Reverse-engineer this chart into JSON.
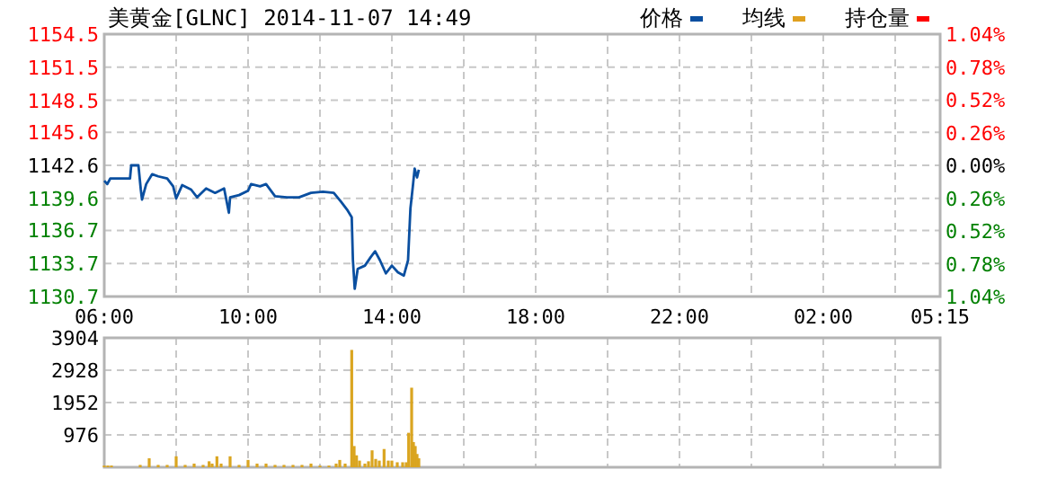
{
  "chart_data": [
    {
      "type": "line",
      "title": "美黄金[GLNC] 2014-11-07 14:49",
      "legend": "top right",
      "grid": true,
      "xlim": [
        "2014-11-07T06:00",
        "2014-11-08T05:15"
      ],
      "xticks": [
        {
          "value": "2014-11-07T06:00",
          "label": "06:00"
        },
        {
          "value": "2014-11-07T08:00",
          "label": null
        },
        {
          "value": "2014-11-07T10:00",
          "label": "10:00"
        },
        {
          "value": "2014-11-07T12:00",
          "label": null
        },
        {
          "value": "2014-11-07T14:00",
          "label": "14:00"
        },
        {
          "value": "2014-11-07T16:00",
          "label": null
        },
        {
          "value": "2014-11-07T18:00",
          "label": "18:00"
        },
        {
          "value": "2014-11-07T20:00",
          "label": null
        },
        {
          "value": "2014-11-07T22:00",
          "label": "22:00"
        },
        {
          "value": "2014-11-08T00:00",
          "label": null
        },
        {
          "value": "2014-11-08T02:00",
          "label": "02:00"
        },
        {
          "value": "2014-11-08T04:00",
          "label": null
        },
        {
          "value": "2014-11-08T05:15",
          "label": "05:15"
        }
      ],
      "ylim": [
        1130.7,
        1154.5
      ],
      "yticks": [
        1130.7,
        1133.7,
        1136.7,
        1139.6,
        1142.6,
        1145.6,
        1148.5,
        1151.5,
        1154.5
      ],
      "y2lim": [
        -1.04,
        1.04
      ],
      "y2ticks": [
        {
          "value": -1.04,
          "label": "1.04%"
        },
        {
          "value": -0.78,
          "label": "0.78%"
        },
        {
          "value": -0.52,
          "label": "0.52%"
        },
        {
          "value": -0.26,
          "label": "0.26%"
        },
        {
          "value": 0,
          "label": "0.00%"
        },
        {
          "value": 0.26,
          "label": "0.26%"
        },
        {
          "value": 0.52,
          "label": "0.52%"
        },
        {
          "value": 0.78,
          "label": "0.78%"
        },
        {
          "value": 1.04,
          "label": "1.04%"
        }
      ],
      "series": [
        {
          "name": "价格",
          "color": "#0a4fa0",
          "x": [
            "2014-11-07T06:00",
            "2014-11-07T06:05",
            "2014-11-07T06:10",
            "2014-11-07T06:43",
            "2014-11-07T06:45",
            "2014-11-07T06:57",
            "2014-11-07T07:01",
            "2014-11-07T07:03",
            "2014-11-07T07:10",
            "2014-11-07T07:20",
            "2014-11-07T07:30",
            "2014-11-07T07:45",
            "2014-11-07T07:55",
            "2014-11-07T08:00",
            "2014-11-07T08:10",
            "2014-11-07T08:25",
            "2014-11-07T08:35",
            "2014-11-07T08:50",
            "2014-11-07T09:05",
            "2014-11-07T09:20",
            "2014-11-07T09:28",
            "2014-11-07T09:30",
            "2014-11-07T09:45",
            "2014-11-07T10:00",
            "2014-11-07T10:05",
            "2014-11-07T10:20",
            "2014-11-07T10:30",
            "2014-11-07T10:45",
            "2014-11-07T11:05",
            "2014-11-07T11:25",
            "2014-11-07T11:45",
            "2014-11-07T12:05",
            "2014-11-07T12:23",
            "2014-11-07T12:35",
            "2014-11-07T12:45",
            "2014-11-07T12:53",
            "2014-11-07T12:55",
            "2014-11-07T12:58",
            "2014-11-07T13:03",
            "2014-11-07T13:15",
            "2014-11-07T13:25",
            "2014-11-07T13:32",
            "2014-11-07T13:40",
            "2014-11-07T13:50",
            "2014-11-07T14:00",
            "2014-11-07T14:10",
            "2014-11-07T14:20",
            "2014-11-07T14:27",
            "2014-11-07T14:31",
            "2014-11-07T14:35",
            "2014-11-07T14:38",
            "2014-11-07T14:42",
            "2014-11-07T14:45"
          ],
          "values": [
            1141.2,
            1140.9,
            1141.4,
            1141.4,
            1142.6,
            1142.6,
            1140.4,
            1139.5,
            1140.9,
            1141.8,
            1141.6,
            1141.4,
            1140.7,
            1139.6,
            1140.8,
            1140.4,
            1139.7,
            1140.5,
            1140.1,
            1140.5,
            1138.3,
            1139.7,
            1139.9,
            1140.3,
            1140.9,
            1140.7,
            1140.9,
            1139.8,
            1139.7,
            1139.7,
            1140.1,
            1140.2,
            1140.1,
            1139.3,
            1138.6,
            1137.9,
            1134.0,
            1131.4,
            1133.2,
            1133.5,
            1134.3,
            1134.8,
            1134.0,
            1132.8,
            1133.5,
            1132.9,
            1132.6,
            1134.0,
            1138.7,
            1140.7,
            1142.3,
            1141.5,
            1142.2
          ]
        },
        {
          "name": "均线",
          "color": "#e0a020"
        },
        {
          "name": "持仓量",
          "color": "#ff0000"
        }
      ]
    },
    {
      "type": "bar",
      "color": "#daa520",
      "grid": true,
      "tick_labels": "y",
      "xlim": [
        "2014-11-07T06:00",
        "2014-11-08T05:15"
      ],
      "xticks": [
        {
          "value": "2014-11-07T06:00",
          "label": null
        },
        {
          "value": "2014-11-07T08:00",
          "label": null
        },
        {
          "value": "2014-11-07T10:00",
          "label": null
        },
        {
          "value": "2014-11-07T12:00",
          "label": null
        },
        {
          "value": "2014-11-07T14:00",
          "label": null
        },
        {
          "value": "2014-11-07T16:00",
          "label": null
        },
        {
          "value": "2014-11-07T18:00",
          "label": null
        },
        {
          "value": "2014-11-07T20:00",
          "label": null
        },
        {
          "value": "2014-11-07T22:00",
          "label": null
        },
        {
          "value": "2014-11-08T00:00",
          "label": null
        },
        {
          "value": "2014-11-08T02:00",
          "label": null
        },
        {
          "value": "2014-11-08T04:00",
          "label": null
        },
        {
          "value": "2014-11-08T05:15",
          "label": null
        }
      ],
      "ylim": [
        0,
        3904
      ],
      "yticks": [
        976,
        1952,
        2928,
        3904
      ],
      "x": [
        "2014-11-07T06:00",
        "2014-11-07T06:06",
        "2014-11-07T06:12",
        "2014-11-07T07:00",
        "2014-11-07T07:15",
        "2014-11-07T07:30",
        "2014-11-07T07:45",
        "2014-11-07T08:00",
        "2014-11-07T08:15",
        "2014-11-07T08:30",
        "2014-11-07T08:45",
        "2014-11-07T08:55",
        "2014-11-07T09:00",
        "2014-11-07T09:08",
        "2014-11-07T09:15",
        "2014-11-07T09:30",
        "2014-11-07T09:45",
        "2014-11-07T10:00",
        "2014-11-07T10:15",
        "2014-11-07T10:30",
        "2014-11-07T10:45",
        "2014-11-07T11:00",
        "2014-11-07T11:15",
        "2014-11-07T11:30",
        "2014-11-07T11:45",
        "2014-11-07T12:00",
        "2014-11-07T12:15",
        "2014-11-07T12:27",
        "2014-11-07T12:33",
        "2014-11-07T12:42",
        "2014-11-07T12:53",
        "2014-11-07T12:57",
        "2014-11-07T13:01",
        "2014-11-07T13:06",
        "2014-11-07T13:15",
        "2014-11-07T13:21",
        "2014-11-07T13:27",
        "2014-11-07T13:33",
        "2014-11-07T13:39",
        "2014-11-07T13:47",
        "2014-11-07T13:54",
        "2014-11-07T14:00",
        "2014-11-07T14:09",
        "2014-11-07T14:18",
        "2014-11-07T14:24",
        "2014-11-07T14:28",
        "2014-11-07T14:33",
        "2014-11-07T14:36",
        "2014-11-07T14:39",
        "2014-11-07T14:42",
        "2014-11-07T14:45"
      ],
      "values": [
        50,
        50,
        50,
        70,
        270,
        70,
        70,
        330,
        70,
        110,
        70,
        180,
        110,
        330,
        110,
        330,
        70,
        220,
        110,
        110,
        70,
        70,
        70,
        70,
        110,
        50,
        50,
        110,
        220,
        110,
        3540,
        640,
        360,
        200,
        110,
        180,
        510,
        250,
        200,
        550,
        200,
        200,
        150,
        150,
        150,
        1040,
        2400,
        760,
        640,
        400,
        270
      ]
    }
  ]
}
